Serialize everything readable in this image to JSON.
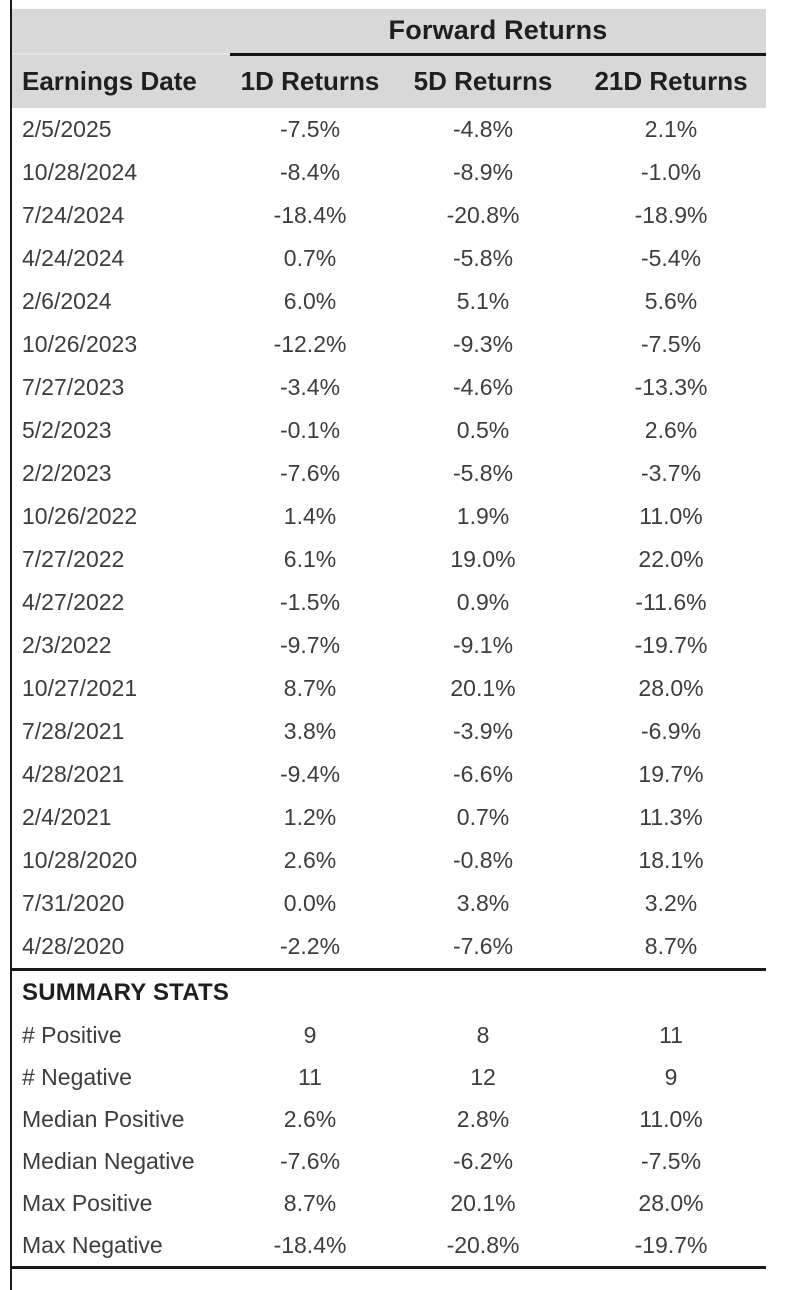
{
  "table": {
    "group_header": "Forward Returns",
    "columns": [
      "Earnings Date",
      "1D Returns",
      "5D Returns",
      "21D Returns"
    ],
    "rows": [
      {
        "date": "2/5/2025",
        "d1": "-7.5%",
        "d5": "-4.8%",
        "d21": "2.1%"
      },
      {
        "date": "10/28/2024",
        "d1": "-8.4%",
        "d5": "-8.9%",
        "d21": "-1.0%"
      },
      {
        "date": "7/24/2024",
        "d1": "-18.4%",
        "d5": "-20.8%",
        "d21": "-18.9%"
      },
      {
        "date": "4/24/2024",
        "d1": "0.7%",
        "d5": "-5.8%",
        "d21": "-5.4%"
      },
      {
        "date": "2/6/2024",
        "d1": "6.0%",
        "d5": "5.1%",
        "d21": "5.6%"
      },
      {
        "date": "10/26/2023",
        "d1": "-12.2%",
        "d5": "-9.3%",
        "d21": "-7.5%"
      },
      {
        "date": "7/27/2023",
        "d1": "-3.4%",
        "d5": "-4.6%",
        "d21": "-13.3%"
      },
      {
        "date": "5/2/2023",
        "d1": "-0.1%",
        "d5": "0.5%",
        "d21": "2.6%"
      },
      {
        "date": "2/2/2023",
        "d1": "-7.6%",
        "d5": "-5.8%",
        "d21": "-3.7%"
      },
      {
        "date": "10/26/2022",
        "d1": "1.4%",
        "d5": "1.9%",
        "d21": "11.0%"
      },
      {
        "date": "7/27/2022",
        "d1": "6.1%",
        "d5": "19.0%",
        "d21": "22.0%"
      },
      {
        "date": "4/27/2022",
        "d1": "-1.5%",
        "d5": "0.9%",
        "d21": "-11.6%"
      },
      {
        "date": "2/3/2022",
        "d1": "-9.7%",
        "d5": "-9.1%",
        "d21": "-19.7%"
      },
      {
        "date": "10/27/2021",
        "d1": "8.7%",
        "d5": "20.1%",
        "d21": "28.0%"
      },
      {
        "date": "7/28/2021",
        "d1": "3.8%",
        "d5": "-3.9%",
        "d21": "-6.9%"
      },
      {
        "date": "4/28/2021",
        "d1": "-9.4%",
        "d5": "-6.6%",
        "d21": "19.7%"
      },
      {
        "date": "2/4/2021",
        "d1": "1.2%",
        "d5": "0.7%",
        "d21": "11.3%"
      },
      {
        "date": "10/28/2020",
        "d1": "2.6%",
        "d5": "-0.8%",
        "d21": "18.1%"
      },
      {
        "date": "7/31/2020",
        "d1": "0.0%",
        "d5": "3.8%",
        "d21": "3.2%"
      },
      {
        "date": "4/28/2020",
        "d1": "-2.2%",
        "d5": "-7.6%",
        "d21": "8.7%"
      }
    ],
    "summary_title": "SUMMARY STATS",
    "summary": [
      {
        "label": "# Positive",
        "d1": "9",
        "d5": "8",
        "d21": "11"
      },
      {
        "label": "# Negative",
        "d1": "11",
        "d5": "12",
        "d21": "9"
      },
      {
        "label": "Median Positive",
        "d1": "2.6%",
        "d5": "2.8%",
        "d21": "11.0%"
      },
      {
        "label": "Median Negative",
        "d1": "-7.6%",
        "d5": "-6.2%",
        "d21": "-7.5%"
      },
      {
        "label": "Max Positive",
        "d1": "8.7%",
        "d5": "20.1%",
        "d21": "28.0%"
      },
      {
        "label": "Max Negative",
        "d1": "-18.4%",
        "d5": "-20.8%",
        "d21": "-19.7%"
      }
    ]
  },
  "colors": {
    "header_bg": "#d8d8d8",
    "rule_black": "#1a1a1a",
    "header_text": "#1f1f1f",
    "body_text": "#3d3d3d",
    "corner_divider": "#e3e3e3"
  },
  "chart_data": {
    "type": "table",
    "title": "Forward Returns",
    "columns": [
      "Earnings Date",
      "1D Returns",
      "5D Returns",
      "21D Returns"
    ],
    "units": "percent",
    "rows": [
      [
        "2/5/2025",
        -7.5,
        -4.8,
        2.1
      ],
      [
        "10/28/2024",
        -8.4,
        -8.9,
        -1.0
      ],
      [
        "7/24/2024",
        -18.4,
        -20.8,
        -18.9
      ],
      [
        "4/24/2024",
        0.7,
        -5.8,
        -5.4
      ],
      [
        "2/6/2024",
        6.0,
        5.1,
        5.6
      ],
      [
        "10/26/2023",
        -12.2,
        -9.3,
        -7.5
      ],
      [
        "7/27/2023",
        -3.4,
        -4.6,
        -13.3
      ],
      [
        "5/2/2023",
        -0.1,
        0.5,
        2.6
      ],
      [
        "2/2/2023",
        -7.6,
        -5.8,
        -3.7
      ],
      [
        "10/26/2022",
        1.4,
        1.9,
        11.0
      ],
      [
        "7/27/2022",
        6.1,
        19.0,
        22.0
      ],
      [
        "4/27/2022",
        -1.5,
        0.9,
        -11.6
      ],
      [
        "2/3/2022",
        -9.7,
        -9.1,
        -19.7
      ],
      [
        "10/27/2021",
        8.7,
        20.1,
        28.0
      ],
      [
        "7/28/2021",
        3.8,
        -3.9,
        -6.9
      ],
      [
        "4/28/2021",
        -9.4,
        -6.6,
        19.7
      ],
      [
        "2/4/2021",
        1.2,
        0.7,
        11.3
      ],
      [
        "10/28/2020",
        2.6,
        -0.8,
        18.1
      ],
      [
        "7/31/2020",
        0.0,
        3.8,
        3.2
      ],
      [
        "4/28/2020",
        -2.2,
        -7.6,
        8.7
      ]
    ],
    "summary_stats": {
      "num_positive": {
        "1D": 9,
        "5D": 8,
        "21D": 11
      },
      "num_negative": {
        "1D": 11,
        "5D": 12,
        "21D": 9
      },
      "median_positive": {
        "1D": 2.6,
        "5D": 2.8,
        "21D": 11.0
      },
      "median_negative": {
        "1D": -7.6,
        "5D": -6.2,
        "21D": -7.5
      },
      "max_positive": {
        "1D": 8.7,
        "5D": 20.1,
        "21D": 28.0
      },
      "max_negative": {
        "1D": -18.4,
        "5D": -20.8,
        "21D": -19.7
      }
    }
  }
}
